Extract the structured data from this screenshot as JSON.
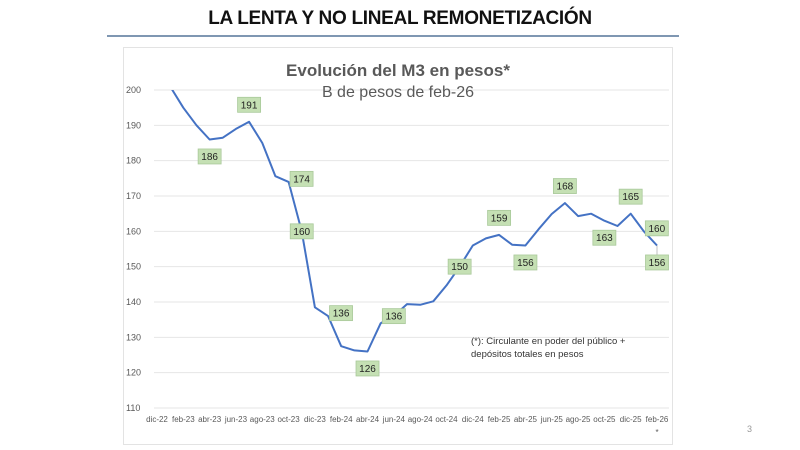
{
  "slide": {
    "title": "LA LENTA Y NO LINEAL REMONETIZACIÓN",
    "page_number": "3"
  },
  "colors": {
    "line": "#4472c4",
    "label_fill": "#c5e0b4",
    "label_border": "#a9c99a",
    "grid": "#e6e6e6",
    "title_rule": "#7f97b2"
  },
  "chart_data": {
    "type": "line",
    "title": "Evolución del M3 en pesos*",
    "subtitle": "B de pesos de feb-26",
    "xlabel": "",
    "ylabel": "",
    "ylim": [
      110,
      200
    ],
    "yticks": [
      110,
      120,
      130,
      140,
      150,
      160,
      170,
      180,
      190,
      200
    ],
    "grid": true,
    "legend": "none",
    "x_tick_labels": [
      "dic-22",
      "feb-23",
      "abr-23",
      "jun-23",
      "ago-23",
      "oct-23",
      "dic-23",
      "feb-24",
      "abr-24",
      "jun-24",
      "ago-24",
      "oct-24",
      "dic-24",
      "feb-25",
      "abr-25",
      "jun-25",
      "ago-25",
      "oct-25",
      "dic-25",
      "feb-26"
    ],
    "x_last_marker": "*",
    "x": [
      "dic-22",
      "ene-23",
      "feb-23",
      "mar-23",
      "abr-23",
      "may-23",
      "jun-23",
      "jul-23",
      "ago-23",
      "sep-23",
      "oct-23",
      "nov-23",
      "dic-23",
      "ene-24",
      "feb-24",
      "mar-24",
      "abr-24",
      "may-24",
      "jun-24",
      "jul-24",
      "ago-24",
      "sep-24",
      "oct-24",
      "nov-24",
      "dic-24",
      "ene-25",
      "feb-25",
      "mar-25",
      "abr-25",
      "may-25",
      "jun-25",
      "jul-25",
      "ago-25",
      "sep-25",
      "oct-25",
      "nov-25",
      "dic-25",
      "ene-26",
      "feb-26"
    ],
    "series": [
      {
        "name": "M3 en pesos",
        "values": [
          206,
          201,
          195,
          190,
          186,
          186.5,
          189,
          191,
          185,
          175.6,
          174,
          160,
          138.5,
          136,
          127.5,
          126.3,
          126,
          134,
          136,
          139.4,
          139.2,
          140.2,
          144.7,
          150,
          156,
          158,
          159,
          156.2,
          156,
          160.6,
          164.9,
          168,
          164.3,
          165,
          163,
          161.5,
          165,
          160,
          156
        ]
      }
    ],
    "data_labels": [
      {
        "index": 4,
        "text": "186",
        "pos": "below"
      },
      {
        "index": 7,
        "text": "191",
        "pos": "above"
      },
      {
        "index": 10,
        "text": "174",
        "pos": "right"
      },
      {
        "index": 11,
        "text": "160",
        "pos": "center"
      },
      {
        "index": 13,
        "text": "136",
        "pos": "right"
      },
      {
        "index": 16,
        "text": "126",
        "pos": "below"
      },
      {
        "index": 18,
        "text": "136",
        "pos": "center"
      },
      {
        "index": 23,
        "text": "150",
        "pos": "center"
      },
      {
        "index": 26,
        "text": "159",
        "pos": "above"
      },
      {
        "index": 28,
        "text": "156",
        "pos": "below"
      },
      {
        "index": 31,
        "text": "168",
        "pos": "above"
      },
      {
        "index": 34,
        "text": "163",
        "pos": "below"
      },
      {
        "index": 36,
        "text": "165",
        "pos": "above"
      },
      {
        "index": 37,
        "text": "160",
        "pos": "right"
      },
      {
        "index": 38,
        "text": "156",
        "pos": "below"
      }
    ],
    "annotation": {
      "line1": "(*): Circulante en poder del público +",
      "line2": "depósitos totales en pesos"
    }
  }
}
